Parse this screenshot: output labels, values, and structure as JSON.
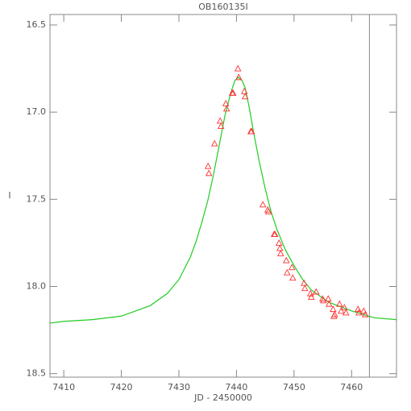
{
  "chart_data": {
    "type": "scatter",
    "title": "OB160135I",
    "x_label": "JD - 2450000",
    "y_label": "I",
    "xlim": [
      7407.6,
      7467.8
    ],
    "ylim": [
      18.52,
      16.44
    ],
    "xticks": [
      7410,
      7420,
      7430,
      7440,
      7450,
      7460
    ],
    "yticks": [
      {
        "value": 16.5,
        "label": "16.5"
      },
      {
        "value": 17.0,
        "label": "17.0"
      },
      {
        "value": 17.5,
        "label": "17.5"
      },
      {
        "value": 18.0,
        "label": "18.0"
      },
      {
        "value": 18.5,
        "label": "18.5"
      }
    ],
    "vline": 7463.1,
    "vline_color": "#888888",
    "series": [
      {
        "type": "scatter",
        "marker": "triangle",
        "color": "#ff3030",
        "x": [
          7435.07,
          7435.21,
          7436.19,
          7437.17,
          7437.31,
          7438.15,
          7438.29,
          7439.27,
          7439.41,
          7440.25,
          7440.39,
          7441.37,
          7441.51,
          7442.49,
          7442.63,
          7444.59,
          7445.43,
          7445.57,
          7446.55,
          7446.69,
          7447.39,
          7447.54,
          7447.68,
          7448.66,
          7448.8,
          7449.64,
          7449.78,
          7451.74,
          7451.88,
          7452.86,
          7453.0,
          7453.84,
          7454.96,
          7455.1,
          7455.94,
          7456.08,
          7456.78,
          7456.92,
          7457.06,
          7457.9,
          7458.18,
          7458.74,
          7459.02,
          7461.12,
          7461.26,
          7462.1,
          7462.38
        ],
        "values": [
          17.31,
          17.35,
          17.18,
          17.05,
          17.08,
          16.95,
          16.98,
          16.89,
          16.89,
          16.75,
          16.8,
          16.88,
          16.91,
          17.11,
          17.11,
          17.53,
          17.56,
          17.57,
          17.7,
          17.7,
          17.75,
          17.78,
          17.81,
          17.85,
          17.92,
          17.89,
          17.95,
          17.98,
          18.01,
          18.04,
          18.06,
          18.03,
          18.07,
          18.08,
          18.07,
          18.1,
          18.13,
          18.17,
          18.16,
          18.1,
          18.14,
          18.12,
          18.15,
          18.13,
          18.15,
          18.14,
          18.16
        ]
      },
      {
        "type": "line",
        "color": "#22cc22",
        "x": [
          7407.6,
          7410,
          7415,
          7420,
          7425,
          7428,
          7430,
          7432,
          7433,
          7434,
          7435,
          7436,
          7437,
          7438,
          7439,
          7439.7,
          7440.3,
          7441,
          7441.5,
          7442.2,
          7443,
          7444,
          7445,
          7446,
          7447,
          7448.5,
          7450,
          7451.5,
          7453,
          7456,
          7460,
          7464,
          7467.8
        ],
        "values": [
          18.21,
          18.2,
          18.19,
          18.17,
          18.11,
          18.04,
          17.96,
          17.83,
          17.74,
          17.63,
          17.51,
          17.36,
          17.19,
          17.02,
          16.89,
          16.82,
          16.8,
          16.82,
          16.86,
          16.97,
          17.12,
          17.29,
          17.44,
          17.57,
          17.67,
          17.79,
          17.88,
          17.96,
          18.02,
          18.09,
          18.14,
          18.18,
          18.19
        ]
      }
    ]
  }
}
